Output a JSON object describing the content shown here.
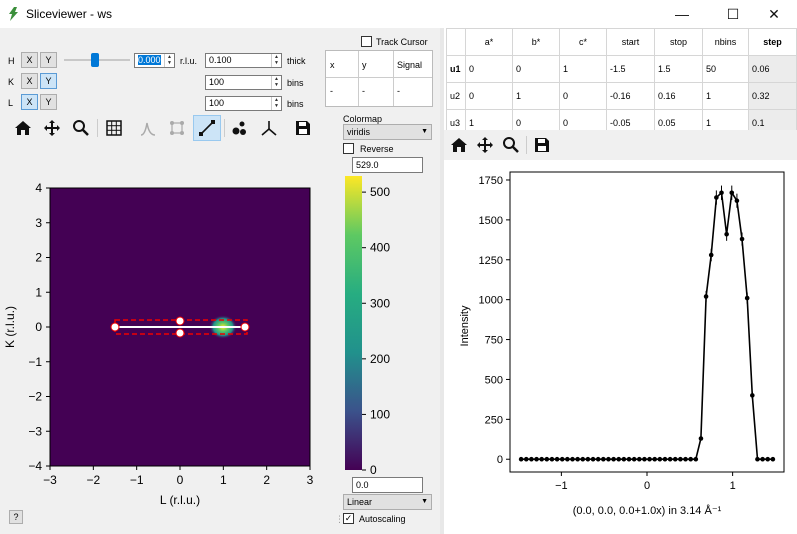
{
  "window": {
    "title": "Sliceviewer - ws",
    "minimize": "—",
    "maximize": "☐",
    "close": "✕"
  },
  "dims": {
    "rows": [
      {
        "label": "H",
        "x": "X",
        "y": "Y",
        "value": "0.000",
        "unit": "r.l.u.",
        "width": "0.100",
        "suffix": "thick"
      },
      {
        "label": "K",
        "x": "X",
        "y": "Y",
        "bins": "100",
        "suffix": "bins"
      },
      {
        "label": "L",
        "x": "X",
        "y": "Y",
        "bins": "100",
        "suffix": "bins"
      }
    ]
  },
  "cursor": {
    "track_label": "Track Cursor",
    "headers": [
      "x",
      "y",
      "Signal"
    ],
    "values": [
      "-",
      "-",
      "-"
    ]
  },
  "colormap": {
    "label": "Colormap",
    "selected": "viridis",
    "reverse_label": "Reverse",
    "max": "529.0",
    "min": "0.0",
    "scale": "Linear",
    "autoscale_label": "Autoscaling",
    "ticks": [
      "500",
      "400",
      "300",
      "200",
      "100",
      "0"
    ]
  },
  "toolbar_left": [
    "home-icon",
    "pan-icon",
    "zoom-icon",
    "grid-icon",
    "peak-icon",
    "roi-icon",
    "line-cut-icon",
    "scatter-icon",
    "axes-icon",
    "save-icon"
  ],
  "toolbar_right": [
    "home-icon",
    "pan-icon",
    "zoom-icon",
    "save-icon"
  ],
  "help": "?",
  "resize_grip": "⋮",
  "slice_plot": {
    "xlabel": "L (r.l.u.)",
    "ylabel": "K (r.l.u.)",
    "xticks": [
      "−3",
      "−2",
      "−1",
      "0",
      "1",
      "2",
      "3"
    ],
    "yticks": [
      "4",
      "3",
      "2",
      "1",
      "0",
      "−1",
      "−2",
      "−3",
      "−4"
    ]
  },
  "cut_table": {
    "headers": [
      "",
      "a*",
      "b*",
      "c*",
      "start",
      "stop",
      "nbins",
      "step"
    ],
    "rows": [
      [
        "u1",
        "0",
        "0",
        "1",
        "-1.5",
        "1.5",
        "50",
        "0.06"
      ],
      [
        "u2",
        "0",
        "1",
        "0",
        "-0.16",
        "0.16",
        "1",
        "0.32"
      ],
      [
        "u3",
        "1",
        "0",
        "0",
        "-0.05",
        "0.05",
        "1",
        "0.1"
      ]
    ]
  },
  "chart_data": {
    "type": "line",
    "title": "",
    "xlabel": "(0.0, 0.0, 0.0+1.0x) in 3.14 Å⁻¹",
    "ylabel": "Intensity",
    "xlim": [
      -1.6,
      1.6
    ],
    "ylim": [
      -80,
      1800
    ],
    "xticks": [
      "−1",
      "0",
      "1"
    ],
    "yticks": [
      "0",
      "250",
      "500",
      "750",
      "1000",
      "1250",
      "1500",
      "1750"
    ],
    "x": [
      -1.47,
      -1.41,
      -1.35,
      -1.29,
      -1.23,
      -1.17,
      -1.11,
      -1.05,
      -0.99,
      -0.93,
      -0.87,
      -0.81,
      -0.75,
      -0.69,
      -0.63,
      -0.57,
      -0.51,
      -0.45,
      -0.39,
      -0.33,
      -0.27,
      -0.21,
      -0.15,
      -0.09,
      -0.03,
      0.03,
      0.09,
      0.15,
      0.21,
      0.27,
      0.33,
      0.39,
      0.45,
      0.51,
      0.57,
      0.63,
      0.69,
      0.75,
      0.81,
      0.87,
      0.93,
      0.99,
      1.05,
      1.11,
      1.17,
      1.23,
      1.29,
      1.35,
      1.41,
      1.47
    ],
    "y": [
      0,
      0,
      0,
      0,
      0,
      0,
      0,
      0,
      0,
      0,
      0,
      0,
      0,
      0,
      0,
      0,
      0,
      0,
      0,
      0,
      0,
      0,
      0,
      0,
      0,
      0,
      0,
      0,
      0,
      0,
      0,
      0,
      0,
      0,
      0,
      0,
      0,
      0,
      0,
      0,
      0,
      0,
      0,
      0,
      0,
      0,
      0,
      0,
      0,
      0
    ],
    "y_override": {
      "35": 130,
      "36": 1020,
      "37": 1280,
      "38": 1640,
      "39": 1670,
      "40": 1410,
      "41": 1670,
      "42": 1620,
      "43": 1380,
      "44": 1010,
      "45": 400,
      "46": 0,
      "47": 0
    }
  }
}
